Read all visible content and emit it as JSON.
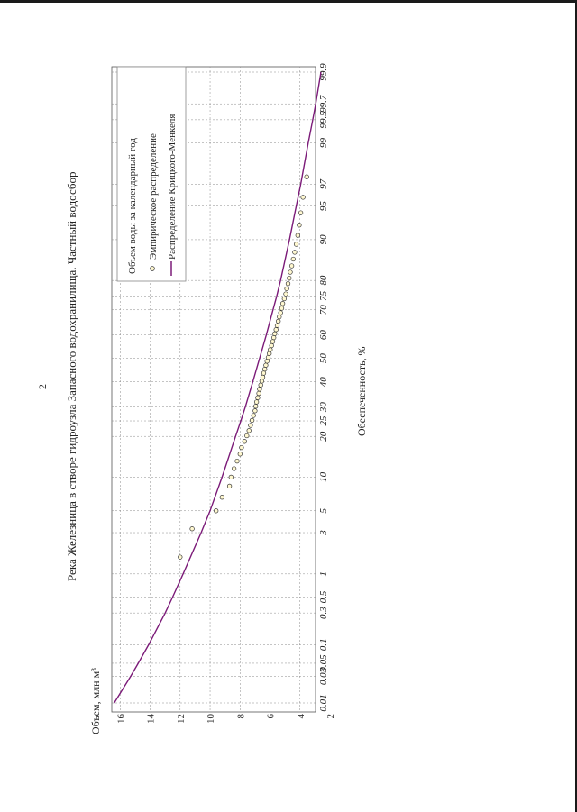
{
  "page": {
    "number": "2"
  },
  "chart_data": {
    "type": "scatter",
    "title": "Река Железница в створе гидроузла Запасного водохранилища. Частный водосбор",
    "xlabel": "Обеспеченность, %",
    "ylabel": "Объем, млн м³",
    "x_scale": "probability",
    "xlim": [
      0.01,
      99.9
    ],
    "ylim": [
      2,
      16.5
    ],
    "x_ticks": [
      0.01,
      0.03,
      0.05,
      0.1,
      0.3,
      0.5,
      1,
      3,
      5,
      10,
      20,
      25,
      30,
      40,
      50,
      60,
      70,
      75,
      80,
      90,
      95,
      97,
      99,
      99.5,
      99.7,
      99.9
    ],
    "x_tick_labels": [
      "0.01",
      "0.03",
      "0.05",
      "0.1",
      "0.3",
      "0.5",
      "1",
      "3",
      "5",
      "10",
      "20",
      "25",
      "30",
      "40",
      "50",
      "60",
      "70",
      "75",
      "80",
      "90",
      "95",
      "97",
      "99",
      "99.5",
      "99.7",
      "99.9"
    ],
    "y_ticks": [
      2,
      4,
      6,
      8,
      10,
      12,
      14,
      16
    ],
    "grid": true,
    "legend": {
      "title": "Объем воды за календарный год",
      "position": "top-right",
      "entries": [
        "Эмпирическое распределение",
        "Распределение Крицкого-Менкеля"
      ]
    },
    "series": [
      {
        "name": "Эмпирическое распределение",
        "kind": "points",
        "x": [
          1.6,
          3.3,
          5.0,
          6.7,
          8.4,
          10.0,
          11.7,
          13.4,
          15.1,
          16.8,
          18.5,
          20.2,
          21.8,
          23.5,
          25.2,
          26.9,
          28.6,
          30.3,
          31.9,
          33.6,
          35.3,
          37.0,
          38.7,
          40.3,
          42.0,
          43.7,
          45.4,
          47.1,
          48.8,
          50.4,
          52.1,
          53.8,
          55.5,
          57.2,
          58.9,
          60.5,
          62.2,
          63.9,
          65.6,
          67.3,
          68.9,
          70.6,
          72.3,
          74.0,
          75.7,
          77.4,
          79.0,
          80.7,
          82.4,
          84.1,
          85.8,
          87.4,
          89.1,
          90.8,
          92.5,
          94.2,
          95.9,
          97.5
        ],
        "y": [
          12.0,
          11.2,
          9.6,
          9.2,
          8.7,
          8.6,
          8.4,
          8.2,
          8.0,
          7.9,
          7.7,
          7.55,
          7.4,
          7.3,
          7.2,
          7.1,
          7.0,
          6.95,
          6.9,
          6.82,
          6.75,
          6.7,
          6.62,
          6.55,
          6.48,
          6.42,
          6.35,
          6.28,
          6.2,
          6.12,
          6.05,
          5.98,
          5.9,
          5.82,
          5.75,
          5.68,
          5.6,
          5.52,
          5.45,
          5.38,
          5.3,
          5.22,
          5.15,
          5.05,
          4.95,
          4.88,
          4.8,
          4.72,
          4.65,
          4.55,
          4.45,
          4.35,
          4.25,
          4.15,
          4.05,
          3.95,
          3.8,
          3.55
        ]
      },
      {
        "name": "Распределение Крицкого-Менкеля",
        "kind": "line",
        "color": "#7b1a78",
        "x": [
          0.01,
          0.03,
          0.05,
          0.1,
          0.3,
          0.5,
          1,
          3,
          5,
          10,
          20,
          25,
          30,
          40,
          50,
          60,
          70,
          75,
          80,
          90,
          95,
          97,
          99,
          99.5,
          99.7,
          99.9
        ],
        "y": [
          16.4,
          15.3,
          14.8,
          14.1,
          13.0,
          12.5,
          11.8,
          10.6,
          10.0,
          9.2,
          8.3,
          7.95,
          7.65,
          7.15,
          6.7,
          6.25,
          5.8,
          5.55,
          5.3,
          4.7,
          4.25,
          3.95,
          3.45,
          3.15,
          2.95,
          2.6
        ]
      }
    ]
  }
}
